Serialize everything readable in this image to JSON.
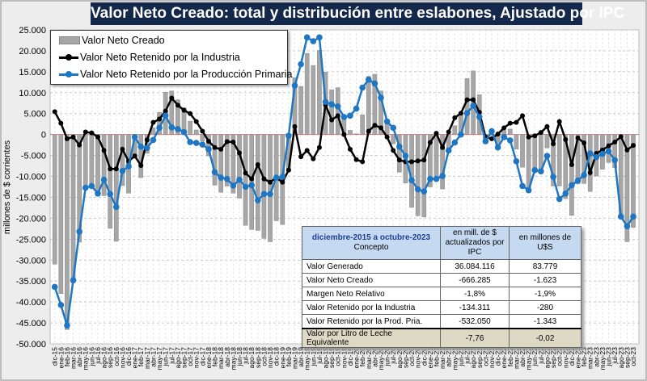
{
  "title": "Valor Neto Creado: total y distribución entre eslabones, Ajustado  por IPC",
  "chart_data": {
    "type": "bar+line",
    "title": "Valor Neto Creado: total y distribución entre eslabones, Ajustado  por IPC",
    "ylabel": "millones de $ corrientes",
    "xlabel": "",
    "ylim": [
      -50000,
      25000
    ],
    "yticks": [
      "25.000",
      "20.000",
      "15.000",
      "10.000",
      "5.000",
      "0",
      "-5.000",
      "-10.000",
      "-15.000",
      "-20.000",
      "-25.000",
      "-30.000",
      "-35.000",
      "-40.000",
      "-45.000",
      "-50.000"
    ],
    "ytick_values": [
      25000,
      20000,
      15000,
      10000,
      5000,
      0,
      -5000,
      -10000,
      -15000,
      -20000,
      -25000,
      -30000,
      -35000,
      -40000,
      -45000,
      -50000
    ],
    "grid": true,
    "legend_position": "top-left",
    "categories": [
      "dic-15",
      "ene-16",
      "feb-16",
      "mar-16",
      "abr-16",
      "may-16",
      "jun-16",
      "jul-16",
      "ago-16",
      "sep-16",
      "oct-16",
      "nov-16",
      "dic-16",
      "ene-17",
      "feb-17",
      "mar-17",
      "abr-17",
      "may-17",
      "jun-17",
      "jul-17",
      "ago-17",
      "sep-17",
      "oct-17",
      "nov-17",
      "dic-17",
      "ene-18",
      "feb-18",
      "mar-18",
      "abr-18",
      "may-18",
      "jun-18",
      "jul-18",
      "ago-18",
      "sep-18",
      "oct-18",
      "nov-18",
      "dic-18",
      "ene-19",
      "feb-19",
      "mar-19",
      "abr-19",
      "may-19",
      "jun-19",
      "jul-19",
      "ago-19",
      "sep-19",
      "oct-19",
      "nov-19",
      "dic-19",
      "ene-20",
      "feb-20",
      "mar-20",
      "abr-20",
      "may-20",
      "jun-20",
      "jul-20",
      "ago-20",
      "sep-20",
      "oct-20",
      "nov-20",
      "dic-20",
      "ene-21",
      "feb-21",
      "mar-21",
      "abr-21",
      "may-21",
      "jun-21",
      "jul-21",
      "ago-21",
      "sep-21",
      "oct-21",
      "nov-21",
      "dic-21",
      "ene-22",
      "feb-22",
      "mar-22",
      "abr-22",
      "may-22",
      "jun-22",
      "jul-22",
      "ago-22",
      "sep-22",
      "oct-22",
      "nov-22",
      "dic-22",
      "ene-23",
      "feb-23",
      "mar-23",
      "abr-23",
      "may-23",
      "jun-23",
      "jul-23",
      "ago-23",
      "sep-23",
      "oct-23"
    ],
    "series": [
      {
        "name": "Valor Neto Creado",
        "type": "bar",
        "color": "#a6a6a6",
        "values": [
          -30950,
          -38000,
          -46600,
          -35400,
          -25700,
          -12100,
          -11900,
          -14700,
          -14600,
          -22400,
          -25500,
          -12200,
          -14000,
          -5700,
          -10300,
          -4500,
          1600,
          5300,
          10100,
          10400,
          8300,
          6400,
          3200,
          1100,
          -1600,
          -5100,
          -12100,
          -13800,
          -12300,
          -14000,
          -15200,
          -21700,
          -22700,
          -22900,
          -24800,
          -25600,
          -20600,
          -21500,
          -8800,
          13600,
          11500,
          19400,
          16500,
          20100,
          14900,
          10700,
          11200,
          4200,
          1000,
          200,
          4700,
          13900,
          14400,
          10400,
          2500,
          -2200,
          -9000,
          -11600,
          -17400,
          -19400,
          -19700,
          -12500,
          -10300,
          -13000,
          -3200,
          2100,
          5100,
          13400,
          15200,
          9500,
          -2200,
          -200,
          -3000,
          1000,
          1300,
          -3500,
          -7800,
          -13900,
          -8800,
          -8300,
          -3200,
          -12300,
          -12300,
          -15300,
          -19300,
          -11800,
          -11700,
          -13600,
          -9900,
          -8300,
          -6700,
          -7900,
          -20100,
          -25600,
          -22200
        ]
      },
      {
        "name": "Valor Neto Retenido por la Industria",
        "type": "line",
        "color": "#000000",
        "values": [
          5450,
          2700,
          -1000,
          -600,
          -2500,
          600,
          400,
          -600,
          -3800,
          -8200,
          -8200,
          -3500,
          -6400,
          -5100,
          -7400,
          -1300,
          2900,
          3700,
          5600,
          8700,
          7000,
          5800,
          5000,
          3100,
          800,
          -1600,
          -3100,
          -3500,
          -1700,
          -1800,
          -4400,
          -9200,
          -10600,
          -7200,
          -10600,
          -11400,
          -10300,
          -11400,
          -8500,
          1900,
          -5300,
          -3800,
          -5800,
          -3100,
          7100,
          3500,
          4500,
          0,
          -3500,
          -6000,
          -6500,
          800,
          2200,
          1600,
          -600,
          -3800,
          -6100,
          -6500,
          -6500,
          -6300,
          -6100,
          -1900,
          300,
          -3100,
          600,
          4000,
          5100,
          8300,
          8300,
          5300,
          -600,
          -1000,
          100,
          1600,
          2700,
          2900,
          4500,
          -600,
          -300,
          500,
          1900,
          -2200,
          3100,
          -1200,
          -7200,
          -800,
          -2000,
          -9100,
          -4500,
          -3700,
          -2700,
          -1800,
          -500,
          -3700,
          -2600
        ]
      },
      {
        "name": "Valor Neto Retenido por la Producción Primaria",
        "type": "line",
        "color": "#1f77c4",
        "values": [
          -36400,
          -40700,
          -45600,
          -34800,
          -23200,
          -12700,
          -12300,
          -14100,
          -10800,
          -14200,
          -17300,
          -8700,
          -7600,
          -600,
          -2900,
          -3200,
          -1300,
          1600,
          4500,
          1700,
          1300,
          600,
          -1800,
          -2000,
          -2400,
          -3500,
          -9000,
          -10300,
          -10600,
          -12200,
          -10800,
          -12500,
          -12100,
          -15700,
          -14200,
          -14200,
          -10300,
          -10100,
          -300,
          11700,
          16800,
          23200,
          22300,
          23200,
          7800,
          7200,
          6700,
          4200,
          4500,
          6200,
          11200,
          13100,
          12200,
          8800,
          3100,
          1600,
          -2900,
          -5100,
          -10900,
          -13100,
          -13600,
          -10600,
          -10600,
          -9900,
          -3800,
          -1900,
          0,
          5100,
          6900,
          4200,
          -1600,
          800,
          -3100,
          -600,
          -1400,
          -6400,
          -12300,
          -13300,
          -8500,
          -8800,
          -5100,
          -10100,
          -15400,
          -14100,
          -12100,
          -11000,
          -9700,
          -4500,
          -5400,
          -4600,
          -4000,
          -6100,
          -19600,
          -21900,
          -19600
        ]
      }
    ]
  },
  "legend": [
    "Valor Neto Creado",
    "Valor Neto Retenido por la Industria",
    "Valor Neto Retenido por la Producción Primaria"
  ],
  "table": {
    "period": "diciembre-2015 a octubre-2023",
    "col0": "Concepto",
    "col1": "en mill. de $ actualizados por IPC",
    "col2": "en millones de U$S",
    "rows": [
      [
        "Valor Generado",
        "36.084.116",
        "83.779"
      ],
      [
        "Valor Neto Creado",
        "-666.285",
        "-1.623"
      ],
      [
        "Margen Neto Relativo",
        "-1,8%",
        "-1,9%"
      ],
      [
        "Valor Retenido por la Industria",
        "-134.311",
        "-280"
      ],
      [
        "Valor Retenido por la Prod. Pria.",
        "-532.050",
        "-1.343"
      ],
      [
        "Valor por Litro de Leche Equivalente",
        "-7,76",
        "-0,02"
      ]
    ]
  }
}
